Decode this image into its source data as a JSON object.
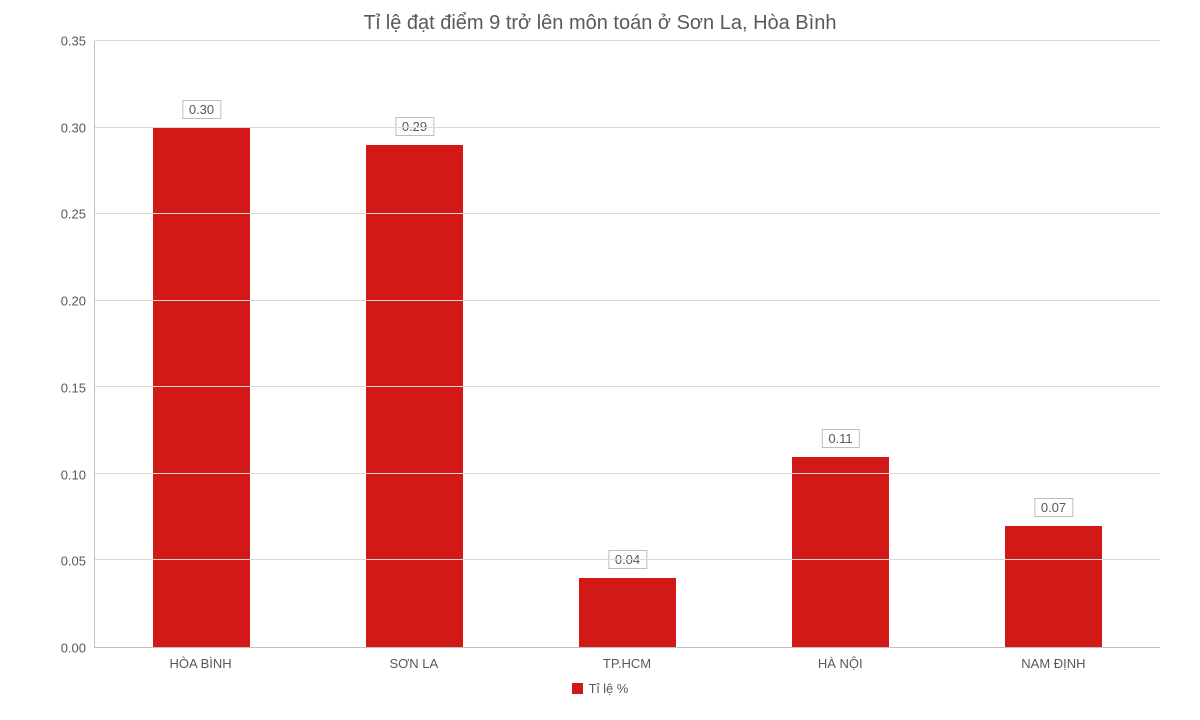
{
  "chart": {
    "type": "bar",
    "title": "Tỉ lệ đạt điểm 9 trở lên môn toán ở Sơn La, Hòa Bình",
    "title_fontsize": 20,
    "title_color": "#595959",
    "background_color": "#ffffff",
    "categories": [
      "HÒA BÌNH",
      "SƠN LA",
      "TP.HCM",
      "HÀ NỘI",
      "NAM ĐỊNH"
    ],
    "values": [
      0.3,
      0.29,
      0.04,
      0.11,
      0.07
    ],
    "value_labels": [
      "0.30",
      "0.29",
      "0.04",
      "0.11",
      "0.07"
    ],
    "bar_color": "#d31818",
    "bar_width_pct": 46,
    "y_axis": {
      "min": 0.0,
      "max": 0.35,
      "tick_step": 0.05,
      "tick_labels": [
        "0.00",
        "0.05",
        "0.10",
        "0.15",
        "0.20",
        "0.25",
        "0.30",
        "0.35"
      ],
      "tick_color": "#595959",
      "tick_fontsize": 13
    },
    "x_axis": {
      "tick_color": "#595959",
      "tick_fontsize": 13
    },
    "grid_color": "#d9d9d9",
    "axis_line_color": "#bfbfbf",
    "data_label": {
      "fontsize": 13,
      "border_color": "#bfbfbf",
      "text_color": "#595959",
      "background": "#ffffff"
    },
    "legend": {
      "label": "Tỉ lệ %",
      "swatch_color": "#d31818",
      "fontsize": 13,
      "text_color": "#595959"
    }
  }
}
